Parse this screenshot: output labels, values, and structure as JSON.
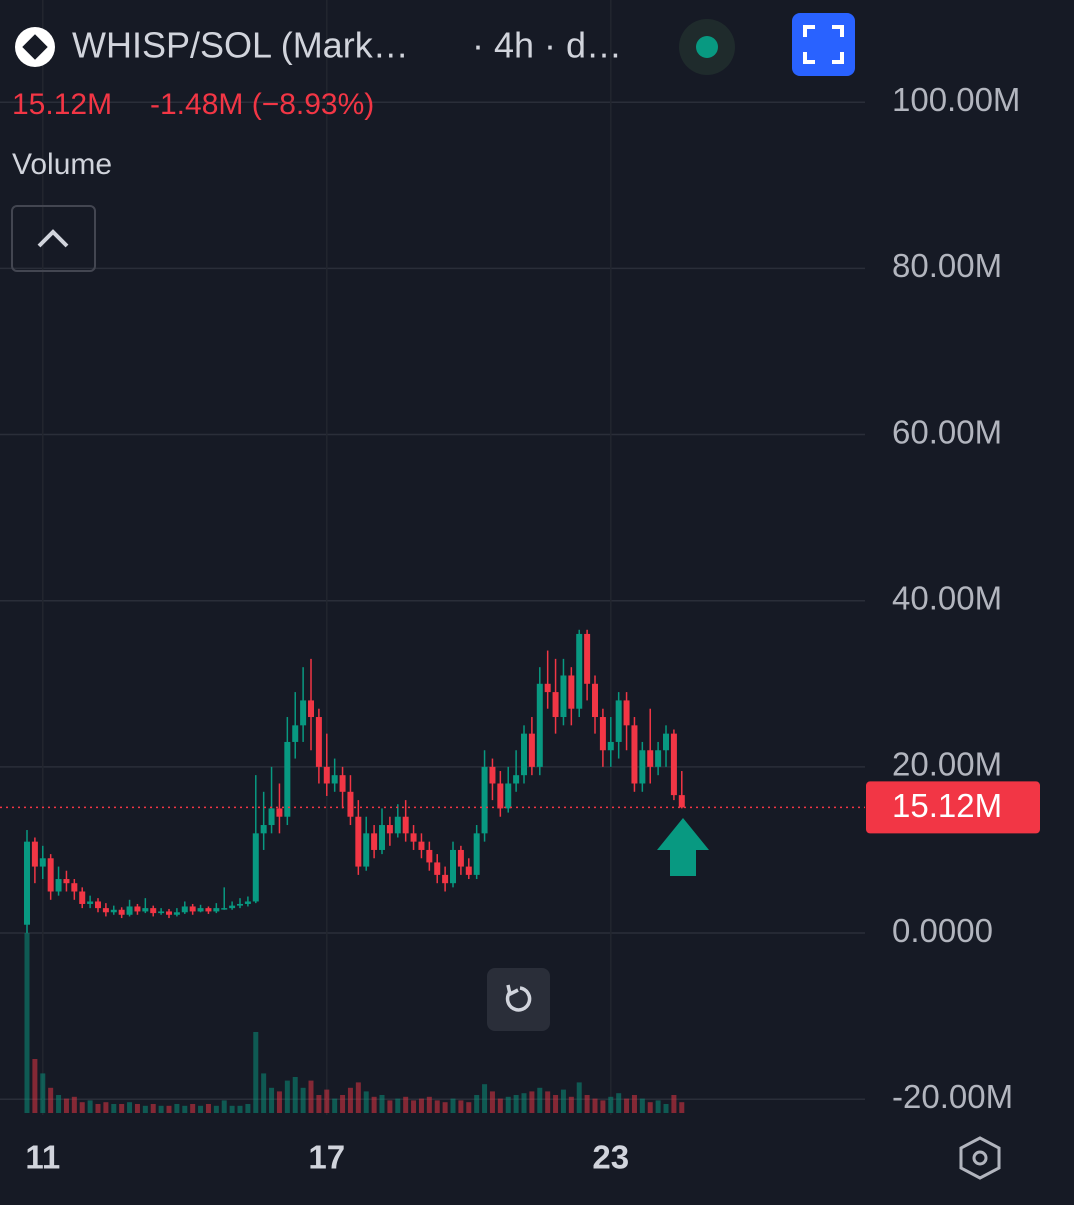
{
  "chart_data": {
    "type": "candlestick",
    "title": "WHISP/SOL (Mark…",
    "interval": "· 4h · d…",
    "last_price_label": "15.12M",
    "change_label": "-1.48M (−8.93%)",
    "indicator": "Volume",
    "up_color": "#089981",
    "down_color": "#f23645",
    "grid": true,
    "categories": [
      null,
      null,
      "11",
      null,
      null,
      null,
      null,
      null,
      null,
      null,
      null,
      null,
      null,
      null,
      null,
      null,
      null,
      null,
      null,
      null,
      null,
      null,
      null,
      null,
      null,
      null,
      null,
      null,
      null,
      null,
      null,
      null,
      null,
      null,
      null,
      null,
      null,
      null,
      "17",
      null,
      null,
      null,
      null,
      null,
      null,
      null,
      null,
      null,
      null,
      null,
      null,
      null,
      null,
      null,
      null,
      null,
      null,
      null,
      null,
      null,
      null,
      null,
      null,
      null,
      null,
      null,
      null,
      null,
      null,
      null,
      null,
      null,
      null,
      null,
      "23",
      null,
      null,
      null,
      null,
      null,
      null,
      null,
      null,
      null
    ],
    "open": [
      1,
      11,
      8,
      9,
      5,
      6.5,
      6,
      5,
      3.5,
      3.8,
      3,
      2.5,
      2.8,
      2.2,
      3.2,
      2.6,
      3,
      2.4,
      2.6,
      2.2,
      2.5,
      3.2,
      2.6,
      3,
      2.6,
      3,
      3,
      3.3,
      3.5,
      3.8,
      12,
      13,
      15,
      14,
      23,
      25,
      28,
      26,
      20,
      18,
      19,
      17,
      14,
      8,
      12,
      10,
      13,
      12,
      14,
      12,
      11,
      10,
      8.5,
      7,
      6,
      10,
      8,
      7,
      12,
      20,
      18,
      15,
      18,
      19,
      24,
      20,
      30,
      29,
      26,
      31,
      27,
      36,
      30,
      26,
      22,
      23,
      28,
      25,
      18,
      22,
      20,
      22,
      24,
      16.6
    ],
    "high": [
      12.4,
      11.5,
      10.5,
      9.5,
      8,
      7.5,
      6.5,
      5.5,
      4.5,
      4.2,
      3.6,
      3.3,
      3.1,
      4,
      3.5,
      4.2,
      3.3,
      3,
      2.9,
      3,
      3.8,
      3.5,
      3.4,
      3.2,
      3.6,
      5.5,
      3.8,
      4.2,
      4.4,
      19,
      17,
      20,
      18,
      26,
      29,
      32,
      33,
      27,
      24,
      21,
      20,
      19,
      16,
      14,
      13,
      15,
      14,
      15.5,
      16,
      13,
      12,
      11,
      9.5,
      8,
      11,
      10.5,
      9,
      13,
      22,
      21,
      19.5,
      20,
      22,
      25,
      26,
      32,
      34,
      33,
      33,
      32,
      36.5,
      36.5,
      31,
      27,
      26,
      29,
      29,
      26,
      23,
      27,
      23,
      25,
      24.5,
      19.5
    ],
    "low": [
      0,
      6,
      6.5,
      4,
      4.5,
      5,
      4,
      3,
      3,
      2.5,
      2,
      2.2,
      1.8,
      2,
      2.2,
      2.4,
      2,
      2.2,
      1.8,
      2,
      2.3,
      2.2,
      2.5,
      2.3,
      2.4,
      2.8,
      2.8,
      3,
      3.2,
      3.6,
      10,
      12,
      12,
      13,
      21,
      23,
      22,
      18,
      16.5,
      17,
      15,
      13,
      7,
      7.5,
      9,
      9.5,
      10.5,
      11.5,
      11,
      10,
      9,
      7.5,
      6,
      5,
      5.5,
      7,
      6.5,
      6.5,
      11,
      16,
      14,
      14.5,
      17,
      18,
      19,
      19,
      27,
      24,
      25,
      25,
      26,
      28,
      24,
      20,
      20,
      21,
      22,
      17,
      17,
      18,
      19,
      20,
      16,
      15
    ],
    "close": [
      11,
      8,
      9,
      5,
      6.5,
      6,
      5,
      3.5,
      3.8,
      3,
      2.5,
      2.8,
      2.2,
      3.2,
      2.6,
      3,
      2.4,
      2.6,
      2.2,
      2.5,
      3.2,
      2.6,
      3,
      2.6,
      3,
      3,
      3.3,
      3.5,
      3.8,
      12,
      13,
      15,
      14,
      23,
      25,
      28,
      26,
      20,
      18,
      19,
      17,
      14,
      8,
      12,
      10,
      13,
      12,
      14,
      12,
      11,
      10,
      8.5,
      7,
      6,
      10,
      8,
      7,
      12,
      20,
      18,
      15,
      18,
      19,
      24,
      20,
      30,
      29,
      26,
      31,
      27,
      36,
      30,
      26,
      22,
      23,
      28,
      25,
      18,
      22,
      20,
      22,
      24,
      16.6,
      15.12
    ],
    "volume": [
      100,
      30,
      22,
      14,
      10,
      8,
      9,
      6,
      7,
      5,
      6,
      5,
      5,
      6,
      5,
      4,
      5,
      4,
      4,
      5,
      4,
      5,
      4,
      5,
      4,
      7,
      4,
      4,
      5,
      45,
      22,
      14,
      12,
      18,
      20,
      14,
      18,
      10,
      13,
      8,
      10,
      14,
      17,
      12,
      9,
      10,
      7,
      8,
      9,
      7,
      8,
      9,
      7,
      6,
      8,
      7,
      6,
      10,
      16,
      12,
      8,
      9,
      10,
      11,
      12,
      14,
      12,
      10,
      13,
      9,
      17,
      10,
      8,
      7,
      9,
      11,
      8,
      10,
      8,
      6,
      7,
      5,
      10,
      6
    ],
    "ylim": [
      -21.9,
      112.3
    ],
    "yticks": [
      {
        "value": 100,
        "label": "100.00M"
      },
      {
        "value": 80,
        "label": "80.00M"
      },
      {
        "value": 60,
        "label": "60.00M"
      },
      {
        "value": 40,
        "label": "40.00M"
      },
      {
        "value": 20,
        "label": "20.00M"
      },
      {
        "value": 0,
        "label": "0.0000"
      },
      {
        "value": -20,
        "label": "-20.00M"
      }
    ]
  }
}
